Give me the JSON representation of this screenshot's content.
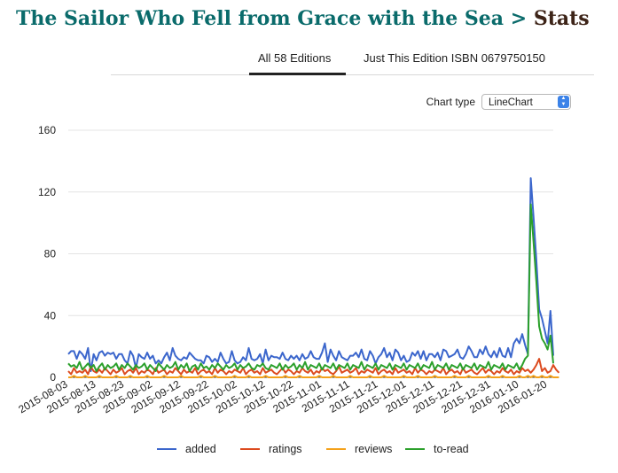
{
  "header": {
    "book_title": "The Sailor Who Fell from Grace with the Sea",
    "separator": ">",
    "section": "Stats"
  },
  "tabs": [
    {
      "label": "All 58 Editions",
      "active": true
    },
    {
      "label": "Just This Edition ISBN 0679750150",
      "active": false
    }
  ],
  "chart_type_control": {
    "label": "Chart type",
    "selected": "LineChart"
  },
  "chart_data": {
    "type": "line",
    "title": "",
    "xlabel": "",
    "ylabel": "",
    "ylim": [
      0,
      160
    ],
    "y_ticks": [
      0,
      40,
      80,
      120,
      160
    ],
    "x_tick_labels": [
      "2015-08-03",
      "2015-08-13",
      "2015-08-23",
      "2015-09-02",
      "2015-09-12",
      "2015-09-22",
      "2015-10-02",
      "2015-10-12",
      "2015-10-22",
      "2015-11-01",
      "2015-11-11",
      "2015-11-21",
      "2015-12-01",
      "2015-12-11",
      "2015-12-21",
      "2015-12-31",
      "2016-01-10",
      "2016-01-20"
    ],
    "x_start": "2015-08-03",
    "grid": true,
    "legend_position": "bottom",
    "series": [
      {
        "name": "added",
        "color": "#3b66cc",
        "values": [
          15,
          17,
          17,
          12,
          17,
          15,
          12,
          19,
          4,
          15,
          11,
          16,
          17,
          14,
          16,
          15,
          16,
          12,
          15,
          15,
          11,
          9,
          17,
          14,
          6,
          15,
          13,
          12,
          16,
          12,
          14,
          9,
          11,
          9,
          13,
          16,
          11,
          19,
          14,
          12,
          11,
          13,
          12,
          16,
          14,
          12,
          11,
          11,
          9,
          14,
          13,
          10,
          12,
          10,
          16,
          12,
          9,
          10,
          17,
          11,
          9,
          10,
          13,
          11,
          19,
          12,
          11,
          12,
          15,
          9,
          18,
          11,
          14,
          13,
          13,
          12,
          16,
          12,
          11,
          14,
          12,
          14,
          11,
          15,
          12,
          13,
          17,
          13,
          12,
          12,
          16,
          22,
          10,
          18,
          14,
          11,
          17,
          13,
          12,
          11,
          14,
          14,
          16,
          13,
          18,
          12,
          11,
          17,
          14,
          9,
          13,
          15,
          19,
          13,
          16,
          11,
          18,
          16,
          11,
          14,
          10,
          11,
          16,
          14,
          17,
          12,
          17,
          11,
          15,
          15,
          13,
          16,
          11,
          18,
          17,
          13,
          14,
          15,
          18,
          13,
          12,
          15,
          20,
          17,
          13,
          13,
          18,
          15,
          20,
          15,
          13,
          17,
          13,
          19,
          14,
          13,
          19,
          13,
          22,
          25,
          22,
          28,
          21,
          15,
          129,
          104,
          76,
          44,
          38,
          30,
          22,
          43,
          14
        ]
      },
      {
        "name": "ratings",
        "color": "#dc4a1e",
        "values": [
          4,
          2,
          6,
          3,
          4,
          3,
          5,
          2,
          7,
          4,
          3,
          5,
          3,
          6,
          4,
          2,
          5,
          3,
          4,
          6,
          2,
          4,
          5,
          3,
          6,
          2,
          4,
          3,
          5,
          4,
          2,
          6,
          3,
          4,
          5,
          2,
          4,
          3,
          6,
          4,
          2,
          5,
          3,
          4,
          3,
          6,
          2,
          4,
          5,
          3,
          4,
          2,
          6,
          3,
          5,
          4,
          2,
          4,
          3,
          5,
          4,
          3,
          6,
          2,
          4,
          5,
          3,
          4,
          2,
          6,
          3,
          4,
          5,
          3,
          2,
          4,
          6,
          3,
          5,
          4,
          2,
          4,
          3,
          6,
          4,
          3,
          5,
          2,
          4,
          3,
          6,
          4,
          5,
          3,
          2,
          4,
          7,
          3,
          4,
          5,
          3,
          4,
          6,
          2,
          4,
          3,
          5,
          4,
          3,
          6,
          2,
          4,
          5,
          3,
          4,
          2,
          6,
          3,
          4,
          5,
          3,
          4,
          2,
          6,
          3,
          5,
          4,
          2,
          4,
          3,
          5,
          4,
          3,
          6,
          2,
          4,
          5,
          3,
          4,
          2,
          6,
          3,
          4,
          5,
          3,
          2,
          4,
          6,
          3,
          5,
          4,
          2,
          4,
          3,
          6,
          4,
          3,
          5,
          2,
          4,
          3,
          6,
          4,
          5,
          3,
          5,
          8,
          12,
          4,
          6,
          3,
          4,
          8,
          5,
          3
        ]
      },
      {
        "name": "reviews",
        "color": "#f4a11a",
        "values": [
          0,
          0,
          1,
          0,
          0,
          0,
          1,
          0,
          0,
          0,
          0,
          1,
          0,
          0,
          0,
          0,
          0,
          1,
          0,
          0,
          0,
          0,
          1,
          0,
          0,
          0,
          0,
          0,
          1,
          0,
          0,
          0,
          0,
          0,
          1,
          0,
          0,
          0,
          0,
          0,
          1,
          0,
          0,
          0,
          0,
          0,
          0,
          1,
          0,
          0,
          0,
          0,
          1,
          0,
          0,
          0,
          0,
          0,
          0,
          1,
          0,
          0,
          0,
          0,
          1,
          0,
          0,
          0,
          0,
          0,
          1,
          0,
          0,
          0,
          0,
          0,
          0,
          1,
          0,
          0,
          0,
          0,
          1,
          0,
          0,
          0,
          0,
          0,
          0,
          1,
          0,
          0,
          0,
          0,
          1,
          0,
          0,
          0,
          0,
          0,
          1,
          0,
          0,
          0,
          0,
          0,
          0,
          1,
          0,
          0,
          0,
          0,
          1,
          0,
          0,
          0,
          0,
          0,
          0,
          1,
          0,
          0,
          0,
          0,
          1,
          0,
          0,
          0,
          0,
          0,
          1,
          0,
          0,
          0,
          0,
          0,
          0,
          1,
          0,
          0,
          0,
          0,
          1,
          0,
          0,
          0,
          0,
          0,
          0,
          1,
          0,
          0,
          0,
          0,
          1,
          0,
          0,
          0,
          0,
          0,
          1,
          0,
          0,
          1,
          0,
          1,
          0,
          0,
          1,
          0,
          0,
          1,
          0,
          0,
          0
        ]
      },
      {
        "name": "to-read",
        "color": "#2ba02b",
        "values": [
          9,
          7,
          8,
          6,
          10,
          5,
          7,
          9,
          6,
          8,
          4,
          7,
          9,
          5,
          8,
          6,
          7,
          9,
          5,
          8,
          6,
          9,
          7,
          5,
          8,
          6,
          7,
          9,
          5,
          8,
          6,
          4,
          9,
          7,
          5,
          8,
          6,
          7,
          10,
          5,
          8,
          6,
          9,
          4,
          7,
          8,
          5,
          9,
          6,
          7,
          5,
          8,
          6,
          9,
          7,
          5,
          8,
          6,
          7,
          9,
          5,
          8,
          6,
          7,
          9,
          6,
          5,
          8,
          7,
          9,
          6,
          5,
          8,
          7,
          6,
          9,
          5,
          8,
          6,
          7,
          9,
          5,
          8,
          6,
          10,
          5,
          8,
          7,
          6,
          9,
          5,
          8,
          7,
          6,
          9,
          5,
          8,
          7,
          6,
          9,
          5,
          8,
          7,
          6,
          10,
          5,
          8,
          7,
          6,
          9,
          5,
          8,
          7,
          6,
          9,
          5,
          8,
          7,
          6,
          9,
          5,
          8,
          7,
          6,
          9,
          5,
          8,
          7,
          6,
          10,
          5,
          8,
          7,
          6,
          9,
          5,
          8,
          7,
          6,
          9,
          5,
          8,
          7,
          6,
          9,
          5,
          8,
          7,
          6,
          10,
          5,
          8,
          7,
          6,
          9,
          5,
          8,
          7,
          6,
          9,
          5,
          8,
          12,
          14,
          112,
          88,
          62,
          33,
          25,
          22,
          18,
          27,
          9
        ]
      }
    ]
  }
}
